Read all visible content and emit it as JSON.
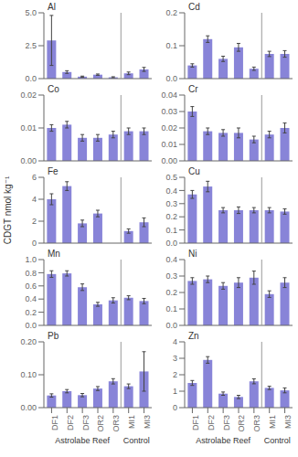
{
  "chart_data": [
    {
      "type": "bar",
      "title": "Al",
      "categories": [
        "DF1",
        "DF2",
        "DF3",
        "OR2",
        "OR3",
        "MI1",
        "MI3"
      ],
      "values": [
        2.9,
        0.5,
        0.15,
        0.3,
        0.1,
        0.4,
        0.7
      ],
      "errors": [
        1.9,
        0.1,
        0.04,
        0.05,
        0.04,
        0.1,
        0.15
      ],
      "ylim": [
        0,
        5.0
      ],
      "yticks": [
        {
          "value": 0,
          "label": "0.0"
        },
        2.5,
        {
          "value": 5.0,
          "label": "5.0"
        }
      ],
      "color": "#8884d8",
      "tick_labels": "y"
    },
    {
      "type": "bar",
      "title": "Cd",
      "categories": [
        "DF1",
        "DF2",
        "DF3",
        "OR2",
        "OR3",
        "MI1",
        "MI3"
      ],
      "values": [
        0.04,
        0.12,
        0.06,
        0.095,
        0.03,
        0.075,
        0.075
      ],
      "errors": [
        0.005,
        0.01,
        0.008,
        0.012,
        0.005,
        0.008,
        0.01
      ],
      "ylim": [
        0,
        0.2
      ],
      "yticks": [
        {
          "value": 0,
          "label": "0.0"
        },
        0.1,
        0.2
      ],
      "color": "#8884d8",
      "tick_labels": "y"
    },
    {
      "type": "bar",
      "title": "Co",
      "categories": [
        "DF1",
        "DF2",
        "DF3",
        "OR2",
        "OR3",
        "MI1",
        "MI3"
      ],
      "values": [
        0.01,
        0.011,
        0.007,
        0.007,
        0.008,
        0.009,
        0.009
      ],
      "errors": [
        0.001,
        0.001,
        0.001,
        0.001,
        0.001,
        0.001,
        0.001
      ],
      "ylim": [
        0.0,
        0.02
      ],
      "yticks": [
        {
          "value": 0,
          "label": "0.00"
        },
        0.01,
        0.02
      ],
      "color": "#8884d8",
      "tick_labels": "y"
    },
    {
      "type": "bar",
      "title": "Cr",
      "categories": [
        "DF1",
        "DF2",
        "DF3",
        "OR2",
        "OR3",
        "MI1",
        "MI3"
      ],
      "values": [
        0.03,
        0.018,
        0.017,
        0.017,
        0.013,
        0.016,
        0.02
      ],
      "errors": [
        0.003,
        0.002,
        0.002,
        0.003,
        0.002,
        0.002,
        0.003
      ],
      "ylim": [
        0.0,
        0.04
      ],
      "yticks": [
        {
          "value": 0,
          "label": "0.00"
        },
        0.01,
        0.02,
        0.03,
        0.04
      ],
      "color": "#8884d8",
      "tick_labels": "y"
    },
    {
      "type": "bar",
      "title": "Fe",
      "ylabel": "CDGT nmol kg⁻¹",
      "categories": [
        "DF1",
        "DF2",
        "DF3",
        "OR2",
        "OR3",
        "MI1",
        "MI3"
      ],
      "values": [
        4.0,
        5.2,
        1.8,
        2.7,
        0.0,
        1.1,
        1.9
      ],
      "errors": [
        0.5,
        0.4,
        0.3,
        0.3,
        0.0,
        0.2,
        0.4
      ],
      "ylim": [
        0,
        6
      ],
      "yticks": [
        0,
        2,
        4,
        6
      ],
      "color": "#8884d8",
      "tick_labels": "y"
    },
    {
      "type": "bar",
      "title": "Cu",
      "categories": [
        "DF1",
        "DF2",
        "DF3",
        "OR2",
        "OR3",
        "MI1",
        "MI3"
      ],
      "values": [
        0.37,
        0.43,
        0.25,
        0.25,
        0.25,
        0.25,
        0.24
      ],
      "errors": [
        0.03,
        0.04,
        0.02,
        0.025,
        0.02,
        0.02,
        0.02
      ],
      "ylim": [
        0.0,
        0.5
      ],
      "yticks": [
        {
          "value": 0,
          "label": "0.0"
        },
        0.1,
        0.2,
        0.3,
        0.4,
        0.5
      ],
      "color": "#8884d8",
      "tick_labels": "y"
    },
    {
      "type": "bar",
      "title": "Mn",
      "categories": [
        "DF1",
        "DF2",
        "DF3",
        "OR2",
        "OR3",
        "MI1",
        "MI3"
      ],
      "values": [
        0.78,
        0.79,
        0.58,
        0.32,
        0.38,
        0.42,
        0.37
      ],
      "errors": [
        0.05,
        0.04,
        0.05,
        0.03,
        0.04,
        0.03,
        0.04
      ],
      "ylim": [
        0.0,
        1.0
      ],
      "yticks": [
        {
          "value": 0,
          "label": "0.0"
        },
        0.2,
        0.4,
        0.6,
        0.8,
        {
          "value": 1.0,
          "label": "1.0"
        }
      ],
      "color": "#8884d8",
      "tick_labels": "y"
    },
    {
      "type": "bar",
      "title": "Ni",
      "categories": [
        "DF1",
        "DF2",
        "DF3",
        "OR2",
        "OR3",
        "MI1",
        "MI3"
      ],
      "values": [
        0.27,
        0.28,
        0.24,
        0.26,
        0.29,
        0.19,
        0.26
      ],
      "errors": [
        0.02,
        0.02,
        0.02,
        0.03,
        0.04,
        0.02,
        0.03
      ],
      "ylim": [
        0.0,
        0.4
      ],
      "yticks": [
        {
          "value": 0,
          "label": "0.0"
        },
        0.1,
        0.2,
        0.3,
        0.4
      ],
      "color": "#8884d8",
      "tick_labels": "y"
    },
    {
      "type": "bar",
      "title": "Pb",
      "categories": [
        "DF1",
        "DF2",
        "DF3",
        "OR2",
        "OR3",
        "MI1",
        "MI3"
      ],
      "values": [
        0.037,
        0.05,
        0.038,
        0.058,
        0.08,
        0.065,
        0.11
      ],
      "errors": [
        0.005,
        0.005,
        0.005,
        0.006,
        0.008,
        0.007,
        0.06
      ],
      "ylim": [
        0.0,
        0.2
      ],
      "yticks": [
        {
          "value": 0,
          "label": "0.00"
        },
        {
          "value": 0.1,
          "label": "0.10"
        },
        {
          "value": 0.2,
          "label": "0.20"
        }
      ],
      "color": "#8884d8",
      "annotations": [
        "Astrolabe Reef",
        "Control"
      ]
    },
    {
      "type": "bar",
      "title": "Zn",
      "categories": [
        "DF1",
        "DF2",
        "DF3",
        "OR2",
        "OR3",
        "MI1",
        "MI3"
      ],
      "values": [
        1.5,
        2.9,
        0.85,
        0.65,
        1.6,
        1.2,
        1.05
      ],
      "errors": [
        0.15,
        0.2,
        0.1,
        0.1,
        0.15,
        0.1,
        0.15
      ],
      "ylim": [
        0,
        4
      ],
      "yticks": [
        0,
        1,
        2,
        3,
        4
      ],
      "color": "#8884d8",
      "annotations": [
        "Astrolabe Reef",
        "Control"
      ]
    }
  ]
}
